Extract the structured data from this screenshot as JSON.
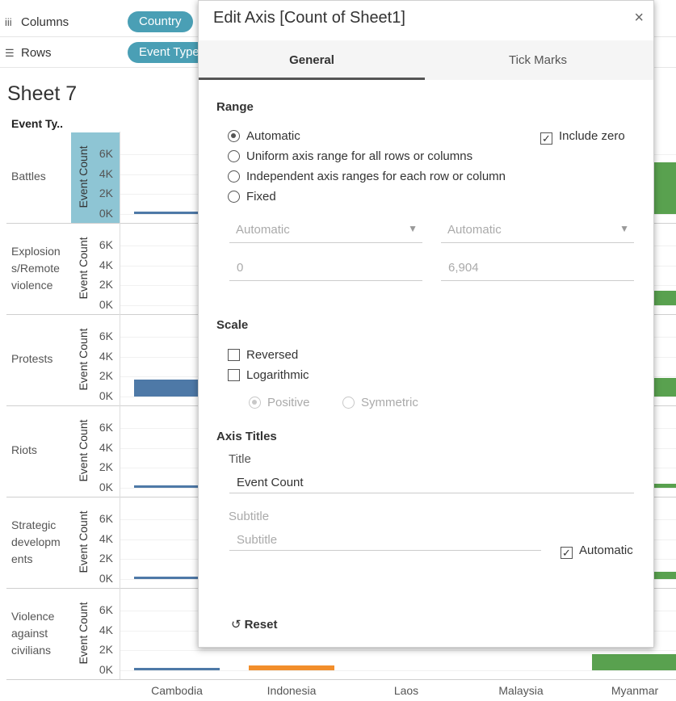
{
  "shelves": {
    "columns_label": "Columns",
    "columns_pill": "Country",
    "rows_label": "Rows",
    "rows_pill": "Event Type"
  },
  "sheet": {
    "title": "Sheet 7",
    "row_header": "Event Ty..",
    "axis_title": "Event Count",
    "ticks": [
      "6K",
      "4K",
      "2K",
      "0K"
    ],
    "rows": [
      {
        "label": "Battles"
      },
      {
        "label": "Explosion s/Remote violence"
      },
      {
        "label": "Protests"
      },
      {
        "label": "Riots"
      },
      {
        "label": "Strategic developm ents"
      },
      {
        "label": "Violence against civilians"
      }
    ],
    "countries": [
      "Cambodia",
      "Indonesia",
      "Laos",
      "Malaysia",
      "Myanmar"
    ]
  },
  "chart_data": {
    "type": "bar",
    "categories": [
      "Cambodia",
      "Indonesia",
      "Laos",
      "Malaysia",
      "Myanmar"
    ],
    "series": [
      {
        "name": "Battles",
        "values": [
          120,
          null,
          null,
          null,
          5200
        ]
      },
      {
        "name": "Explosions/Remote violence",
        "values": [
          null,
          null,
          null,
          null,
          1500
        ]
      },
      {
        "name": "Protests",
        "values": [
          1700,
          null,
          null,
          null,
          1900
        ]
      },
      {
        "name": "Riots",
        "values": [
          200,
          null,
          null,
          null,
          400
        ]
      },
      {
        "name": "Strategic developments",
        "values": [
          250,
          null,
          null,
          null,
          700
        ]
      },
      {
        "name": "Violence against civilians",
        "values": [
          150,
          500,
          null,
          null,
          1600
        ]
      }
    ],
    "colors": {
      "Cambodia": "#4e79a7",
      "Indonesia": "#f28e2b",
      "Myanmar": "#59a14f"
    },
    "ylabel": "Event Count",
    "ylim": [
      0,
      6904
    ]
  },
  "dialog": {
    "title": "Edit Axis [Count of Sheet1]",
    "close": "×",
    "tabs": [
      "General",
      "Tick Marks"
    ],
    "range": {
      "heading": "Range",
      "options": [
        "Automatic",
        "Uniform axis range for all rows or columns",
        "Independent axis ranges for each row or column",
        "Fixed"
      ],
      "selected": "Automatic",
      "include_zero": "Include zero",
      "start_dropdown": "Automatic",
      "end_dropdown": "Automatic",
      "start_value": "0",
      "end_value": "6,904"
    },
    "scale": {
      "heading": "Scale",
      "reversed": "Reversed",
      "logarithmic": "Logarithmic",
      "positive": "Positive",
      "symmetric": "Symmetric"
    },
    "axis_titles": {
      "heading": "Axis Titles",
      "title_label": "Title",
      "title_value": "Event Count",
      "subtitle_label": "Subtitle",
      "subtitle_placeholder": "Subtitle",
      "automatic": "Automatic"
    },
    "reset": "Reset",
    "check_mark": "✓"
  }
}
